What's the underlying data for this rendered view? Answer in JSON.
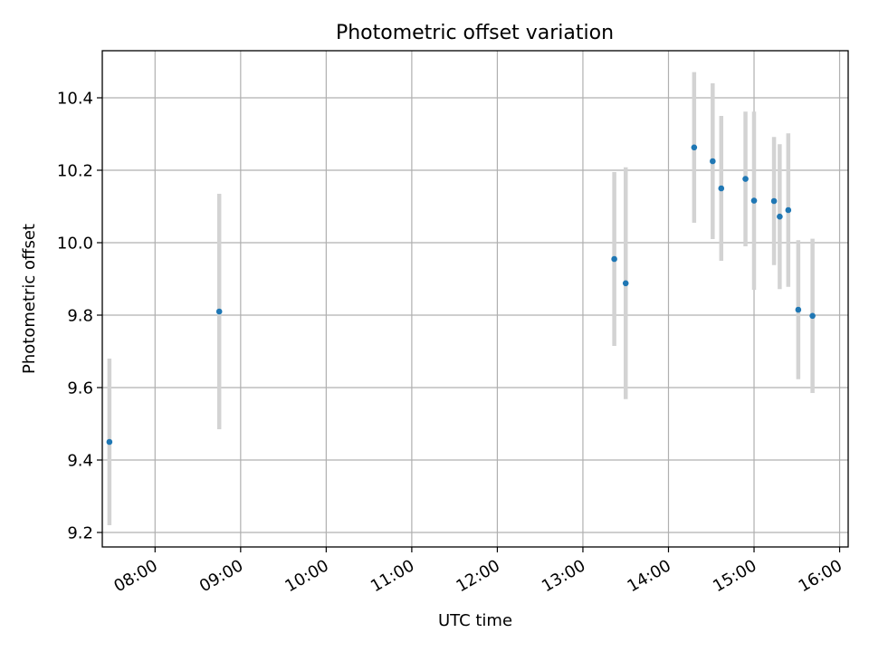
{
  "chart_data": {
    "type": "scatter",
    "title": "Photometric offset variation",
    "xlabel": "UTC time",
    "ylabel": "Photometric offset",
    "x_tick_labels": [
      "08:00",
      "09:00",
      "10:00",
      "11:00",
      "12:00",
      "13:00",
      "14:00",
      "15:00",
      "16:00"
    ],
    "y_tick_labels": [
      "9.2",
      "9.4",
      "9.6",
      "9.8",
      "10.0",
      "10.2",
      "10.4"
    ],
    "xlim": [
      "07:23",
      "16:06"
    ],
    "ylim": [
      9.16,
      10.53
    ],
    "grid": true,
    "marker_color": "#1f77b4",
    "errorbar_color": "#d3d3d3",
    "points": [
      {
        "time": "07:28",
        "y": 9.45,
        "y_low": 9.22,
        "y_high": 9.68
      },
      {
        "time": "08:45",
        "y": 9.81,
        "y_low": 9.485,
        "y_high": 10.135
      },
      {
        "time": "13:22",
        "y": 9.955,
        "y_low": 9.715,
        "y_high": 10.195
      },
      {
        "time": "13:30",
        "y": 9.888,
        "y_low": 9.568,
        "y_high": 10.208
      },
      {
        "time": "14:18",
        "y": 10.263,
        "y_low": 10.055,
        "y_high": 10.471
      },
      {
        "time": "14:31",
        "y": 10.225,
        "y_low": 10.01,
        "y_high": 10.44
      },
      {
        "time": "14:37",
        "y": 10.15,
        "y_low": 9.95,
        "y_high": 10.35
      },
      {
        "time": "14:54",
        "y": 10.176,
        "y_low": 9.99,
        "y_high": 10.362
      },
      {
        "time": "15:00",
        "y": 10.116,
        "y_low": 9.87,
        "y_high": 10.362
      },
      {
        "time": "15:14",
        "y": 10.115,
        "y_low": 9.938,
        "y_high": 10.292
      },
      {
        "time": "15:18",
        "y": 10.072,
        "y_low": 9.872,
        "y_high": 10.272
      },
      {
        "time": "15:24",
        "y": 10.09,
        "y_low": 9.878,
        "y_high": 10.302
      },
      {
        "time": "15:31",
        "y": 9.815,
        "y_low": 9.623,
        "y_high": 10.007
      },
      {
        "time": "15:41",
        "y": 9.798,
        "y_low": 9.585,
        "y_high": 10.011
      }
    ]
  }
}
